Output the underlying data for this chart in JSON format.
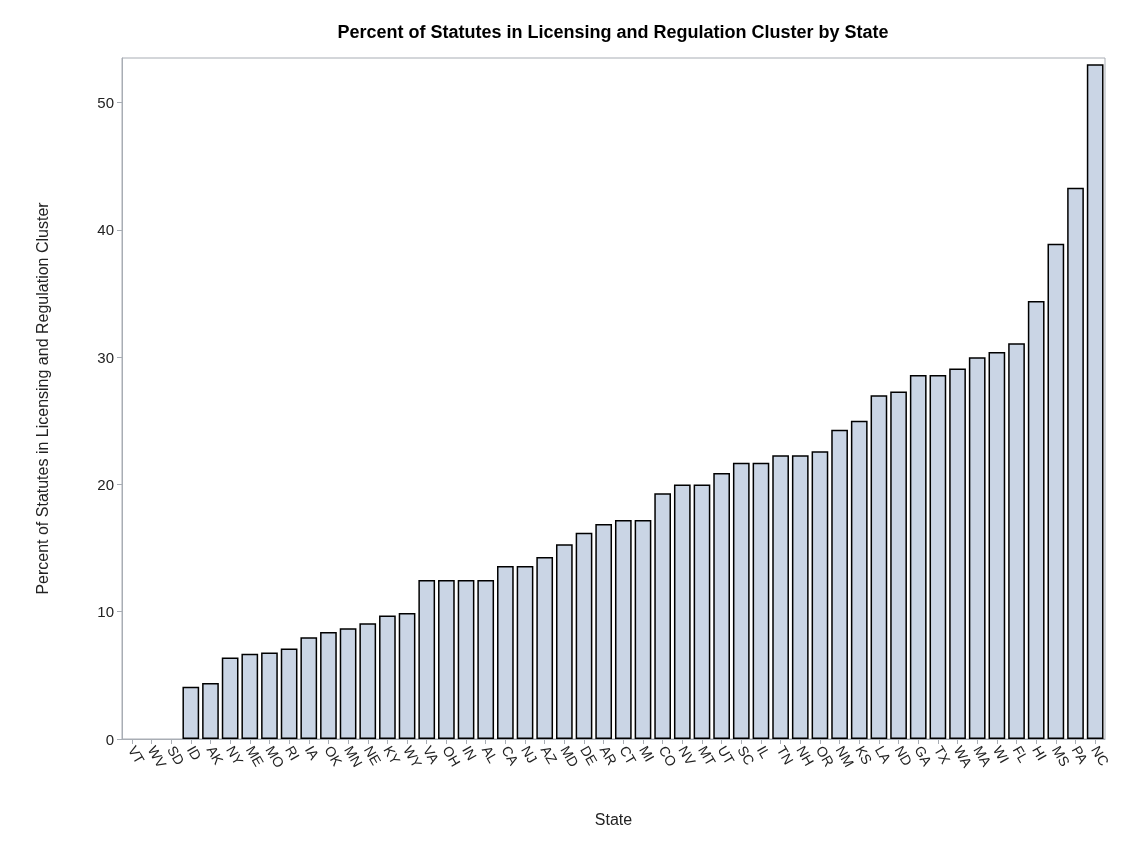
{
  "chart_data": {
    "type": "bar",
    "title": "Percent of Statutes in Licensing and Regulation Cluster by State",
    "xlabel": "State",
    "ylabel": "Percent of Statutes in Licensing and Regulation Cluster",
    "categories": [
      "VT",
      "WV",
      "SD",
      "ID",
      "AK",
      "NY",
      "ME",
      "MO",
      "RI",
      "IA",
      "OK",
      "MN",
      "NE",
      "KY",
      "WY",
      "VA",
      "OH",
      "IN",
      "AL",
      "CA",
      "NJ",
      "AZ",
      "MD",
      "DE",
      "AR",
      "CT",
      "MI",
      "CO",
      "NV",
      "MT",
      "UT",
      "SC",
      "IL",
      "TN",
      "NH",
      "OR",
      "NM",
      "KS",
      "LA",
      "ND",
      "GA",
      "TX",
      "WA",
      "MA",
      "WI",
      "FL",
      "HI",
      "MS",
      "PA",
      "NC"
    ],
    "values": [
      0,
      0,
      0,
      4.1,
      4.4,
      6.4,
      6.7,
      6.8,
      7.1,
      8.0,
      8.4,
      8.7,
      9.1,
      9.7,
      9.9,
      12.5,
      12.5,
      12.5,
      12.5,
      13.6,
      13.6,
      14.3,
      15.3,
      16.2,
      16.9,
      17.2,
      17.2,
      19.3,
      20.0,
      20.0,
      20.9,
      21.7,
      21.7,
      22.3,
      22.3,
      22.6,
      24.3,
      25.0,
      27.0,
      27.3,
      28.6,
      28.6,
      29.1,
      30.0,
      30.4,
      31.1,
      34.4,
      38.9,
      43.3,
      53.0
    ],
    "color": "#cad5e5",
    "ylim": [
      0,
      53.5
    ],
    "yticks": [
      0,
      10,
      20,
      30,
      40,
      50
    ],
    "grid": false
  }
}
